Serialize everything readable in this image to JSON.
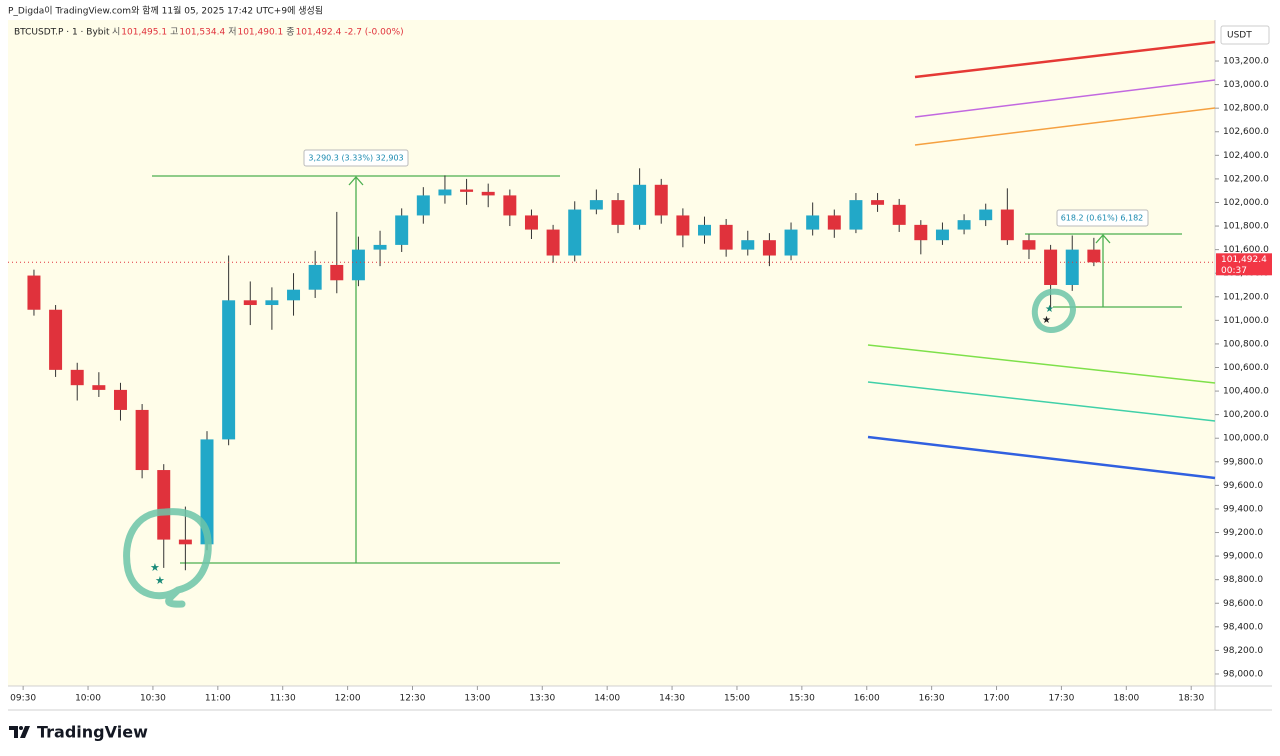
{
  "header": "P_Digda이 TradingView.com와 함께 11월 05, 2025 17:42 UTC+9에 생성됨",
  "footer": "TradingView",
  "chart_data": {
    "type": "candlestick",
    "title": "BTCUSDT.P · 1 · Bybit",
    "legend_items": [
      {
        "label": "시",
        "value": "101,495.1"
      },
      {
        "label": "고",
        "value": "101,534.4"
      },
      {
        "label": "저",
        "value": "101,490.1"
      },
      {
        "label": "종",
        "value": "101,492.4"
      }
    ],
    "change": "-2.7 (-0.00%)",
    "currency": "USDT",
    "up_color": "#22a8c8",
    "down_color": "#e0323c",
    "wick_color": "#333333",
    "candles": [
      {
        "x": 570,
        "open": 101380,
        "high": 101430,
        "low": 101040,
        "close": 101090
      },
      {
        "x": 580,
        "open": 101090,
        "high": 101130,
        "low": 100520,
        "close": 100580
      },
      {
        "x": 590,
        "open": 100580,
        "high": 100640,
        "low": 100320,
        "close": 100450
      },
      {
        "x": 600,
        "open": 100450,
        "high": 100560,
        "low": 100350,
        "close": 100410
      },
      {
        "x": 610,
        "open": 100410,
        "high": 100470,
        "low": 100150,
        "close": 100240
      },
      {
        "x": 620,
        "open": 100240,
        "high": 100290,
        "low": 99660,
        "close": 99730
      },
      {
        "x": 630,
        "open": 99730,
        "high": 99780,
        "low": 98900,
        "close": 99140
      },
      {
        "x": 640,
        "open": 99140,
        "high": 99420,
        "low": 98880,
        "close": 99100
      },
      {
        "x": 650,
        "open": 99100,
        "high": 100060,
        "low": 99050,
        "close": 99990
      },
      {
        "x": 660,
        "open": 99990,
        "high": 101550,
        "low": 99940,
        "close": 101170
      },
      {
        "x": 670,
        "open": 101170,
        "high": 101330,
        "low": 100960,
        "close": 101130
      },
      {
        "x": 680,
        "open": 101130,
        "high": 101280,
        "low": 100920,
        "close": 101170
      },
      {
        "x": 690,
        "open": 101170,
        "high": 101400,
        "low": 101040,
        "close": 101260
      },
      {
        "x": 700,
        "open": 101260,
        "high": 101590,
        "low": 101190,
        "close": 101470
      },
      {
        "x": 710,
        "open": 101470,
        "high": 101920,
        "low": 101230,
        "close": 101340
      },
      {
        "x": 720,
        "open": 101340,
        "high": 101710,
        "low": 101290,
        "close": 101600
      },
      {
        "x": 730,
        "open": 101600,
        "high": 101760,
        "low": 101460,
        "close": 101640
      },
      {
        "x": 740,
        "open": 101640,
        "high": 101950,
        "low": 101580,
        "close": 101890
      },
      {
        "x": 750,
        "open": 101890,
        "high": 102130,
        "low": 101820,
        "close": 102060
      },
      {
        "x": 760,
        "open": 102060,
        "high": 102230,
        "low": 101990,
        "close": 102110
      },
      {
        "x": 770,
        "open": 102110,
        "high": 102200,
        "low": 101980,
        "close": 102090
      },
      {
        "x": 780,
        "open": 102090,
        "high": 102160,
        "low": 101960,
        "close": 102060
      },
      {
        "x": 790,
        "open": 102060,
        "high": 102110,
        "low": 101800,
        "close": 101890
      },
      {
        "x": 800,
        "open": 101890,
        "high": 101940,
        "low": 101690,
        "close": 101770
      },
      {
        "x": 810,
        "open": 101770,
        "high": 101810,
        "low": 101490,
        "close": 101550
      },
      {
        "x": 820,
        "open": 101550,
        "high": 102010,
        "low": 101500,
        "close": 101940
      },
      {
        "x": 830,
        "open": 101940,
        "high": 102110,
        "low": 101900,
        "close": 102020
      },
      {
        "x": 840,
        "open": 102020,
        "high": 102080,
        "low": 101740,
        "close": 101810
      },
      {
        "x": 850,
        "open": 101810,
        "high": 102290,
        "low": 101770,
        "close": 102150
      },
      {
        "x": 860,
        "open": 102150,
        "high": 102200,
        "low": 101820,
        "close": 101890
      },
      {
        "x": 870,
        "open": 101890,
        "high": 101950,
        "low": 101620,
        "close": 101720
      },
      {
        "x": 880,
        "open": 101720,
        "high": 101880,
        "low": 101650,
        "close": 101810
      },
      {
        "x": 890,
        "open": 101810,
        "high": 101860,
        "low": 101540,
        "close": 101600
      },
      {
        "x": 900,
        "open": 101600,
        "high": 101760,
        "low": 101550,
        "close": 101680
      },
      {
        "x": 910,
        "open": 101680,
        "high": 101740,
        "low": 101460,
        "close": 101550
      },
      {
        "x": 920,
        "open": 101550,
        "high": 101830,
        "low": 101510,
        "close": 101770
      },
      {
        "x": 930,
        "open": 101770,
        "high": 102000,
        "low": 101720,
        "close": 101890
      },
      {
        "x": 940,
        "open": 101890,
        "high": 101940,
        "low": 101700,
        "close": 101770
      },
      {
        "x": 950,
        "open": 101770,
        "high": 102080,
        "low": 101740,
        "close": 102020
      },
      {
        "x": 960,
        "open": 102020,
        "high": 102080,
        "low": 101920,
        "close": 101980
      },
      {
        "x": 970,
        "open": 101980,
        "high": 102030,
        "low": 101750,
        "close": 101810
      },
      {
        "x": 980,
        "open": 101810,
        "high": 101850,
        "low": 101560,
        "close": 101680
      },
      {
        "x": 990,
        "open": 101680,
        "high": 101830,
        "low": 101640,
        "close": 101770
      },
      {
        "x": 1000,
        "open": 101770,
        "high": 101900,
        "low": 101730,
        "close": 101850
      },
      {
        "x": 1010,
        "open": 101850,
        "high": 101990,
        "low": 101800,
        "close": 101940
      },
      {
        "x": 1020,
        "open": 101940,
        "high": 102120,
        "low": 101640,
        "close": 101680
      },
      {
        "x": 1030,
        "open": 101680,
        "high": 101730,
        "low": 101520,
        "close": 101600
      },
      {
        "x": 1040,
        "open": 101600,
        "high": 101640,
        "low": 101090,
        "close": 101300
      },
      {
        "x": 1050,
        "open": 101300,
        "high": 101720,
        "low": 101250,
        "close": 101600
      },
      {
        "x": 1060,
        "open": 101600,
        "high": 101700,
        "low": 101460,
        "close": 101492.4
      }
    ],
    "last_price": {
      "value": 101492.4,
      "label": "101,492.4"
    },
    "countdown": "00:37",
    "measures": [
      "3,290.3 (3.33%) 32,903",
      "618.2 (0.61%) 6,182"
    ],
    "xlim": [
      563,
      1121
    ],
    "xticks": [
      {
        "value": 570,
        "label": "09:30"
      },
      {
        "value": 600,
        "label": "10:00"
      },
      {
        "value": 630,
        "label": "10:30"
      },
      {
        "value": 660,
        "label": "11:00"
      },
      {
        "value": 690,
        "label": "11:30"
      },
      {
        "value": 720,
        "label": "12:00"
      },
      {
        "value": 750,
        "label": "12:30"
      },
      {
        "value": 780,
        "label": "13:00"
      },
      {
        "value": 810,
        "label": "13:30"
      },
      {
        "value": 840,
        "label": "14:00"
      },
      {
        "value": 870,
        "label": "14:30"
      },
      {
        "value": 900,
        "label": "15:00"
      },
      {
        "value": 930,
        "label": "15:30"
      },
      {
        "value": 960,
        "label": "16:00"
      },
      {
        "value": 990,
        "label": "16:30"
      },
      {
        "value": 1020,
        "label": "17:00"
      },
      {
        "value": 1050,
        "label": "17:30"
      },
      {
        "value": 1080,
        "label": "18:00"
      },
      {
        "value": 1110,
        "label": "18:30"
      }
    ],
    "ylim": [
      97898,
      103548
    ],
    "yticks": [
      {
        "value": 98000,
        "label": "98,000.0"
      },
      {
        "value": 98200,
        "label": "98,200.0"
      },
      {
        "value": 98400,
        "label": "98,400.0"
      },
      {
        "value": 98600,
        "label": "98,600.0"
      },
      {
        "value": 98800,
        "label": "98,800.0"
      },
      {
        "value": 99000,
        "label": "99,000.0"
      },
      {
        "value": 99200,
        "label": "99,200.0"
      },
      {
        "value": 99400,
        "label": "99,400.0"
      },
      {
        "value": 99600,
        "label": "99,600.0"
      },
      {
        "value": 99800,
        "label": "99,800.0"
      },
      {
        "value": 100000,
        "label": "100,000.0"
      },
      {
        "value": 100200,
        "label": "100,200.0"
      },
      {
        "value": 100400,
        "label": "100,400.0"
      },
      {
        "value": 100600,
        "label": "100,600.0"
      },
      {
        "value": 100800,
        "label": "100,800.0"
      },
      {
        "value": 101000,
        "label": "101,000.0"
      },
      {
        "value": 101200,
        "label": "101,200.0"
      },
      {
        "value": 101400,
        "label": "101,400.0"
      },
      {
        "value": 101600,
        "label": "101,600.0"
      },
      {
        "value": 101800,
        "label": "101,800.0"
      },
      {
        "value": 102000,
        "label": "102,000.0"
      },
      {
        "value": 102200,
        "label": "102,200.0"
      },
      {
        "value": 102400,
        "label": "102,400.0"
      },
      {
        "value": 102600,
        "label": "102,600.0"
      },
      {
        "value": 102800,
        "label": "102,800.0"
      },
      {
        "value": 103000,
        "label": "103,000.0"
      },
      {
        "value": 103200,
        "label": "103,200.0"
      }
    ]
  }
}
